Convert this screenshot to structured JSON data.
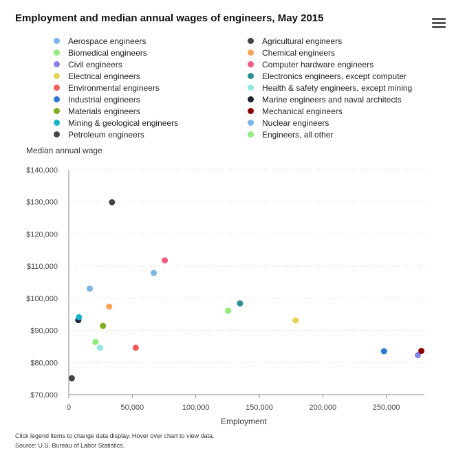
{
  "chart_data": {
    "type": "scatter",
    "title": "Employment and median annual wages of engineers, May 2015",
    "xlabel": "Employment",
    "ylabel": "Median annual wage",
    "xlim": [
      0,
      280000
    ],
    "ylim": [
      70000,
      140000
    ],
    "x_ticks": [
      0,
      50000,
      100000,
      150000,
      200000,
      250000
    ],
    "x_tick_labels": [
      "0",
      "50,000",
      "100,000",
      "150,000",
      "200,000",
      "250,000"
    ],
    "y_ticks": [
      70000,
      80000,
      90000,
      100000,
      110000,
      120000,
      130000,
      140000
    ],
    "y_tick_labels": [
      "$70,000",
      "$80,000",
      "$90,000",
      "$100,000",
      "$110,000",
      "$120,000",
      "$130,000",
      "$140,000"
    ],
    "series": [
      {
        "name": "Aerospace engineers",
        "color": "#7cb5ec",
        "x": 16500,
        "y": 103000
      },
      {
        "name": "Agricultural engineers",
        "color": "#434348",
        "x": 2400,
        "y": 75100
      },
      {
        "name": "Biomedical engineers",
        "color": "#90ed7d",
        "x": 21000,
        "y": 86400
      },
      {
        "name": "Chemical engineers",
        "color": "#f7a35c",
        "x": 31800,
        "y": 97400
      },
      {
        "name": "Civil engineers",
        "color": "#8085e9",
        "x": 274800,
        "y": 82300
      },
      {
        "name": "Computer hardware engineers",
        "color": "#f15c80",
        "x": 75600,
        "y": 111800
      },
      {
        "name": "Electrical engineers",
        "color": "#e4d354",
        "x": 178600,
        "y": 93100
      },
      {
        "name": "Electronics engineers, except computer",
        "color": "#2b908f",
        "x": 134800,
        "y": 98400
      },
      {
        "name": "Environmental engineers",
        "color": "#f45b5b",
        "x": 52700,
        "y": 84600
      },
      {
        "name": "Health & safety engineers, except mining",
        "color": "#91e8e1",
        "x": 24600,
        "y": 84600
      },
      {
        "name": "Industrial engineers",
        "color": "#2c78d4",
        "x": 248200,
        "y": 83500
      },
      {
        "name": "Marine engineers and naval architects",
        "color": "#1c2430",
        "x": 7500,
        "y": 93200
      },
      {
        "name": "Materials engineers",
        "color": "#7fab1e",
        "x": 26900,
        "y": 91400
      },
      {
        "name": "Mechanical engineers",
        "color": "#8b0000",
        "x": 277600,
        "y": 83600
      },
      {
        "name": "Mining & geological engineers",
        "color": "#17b1c9",
        "x": 8000,
        "y": 94100
      },
      {
        "name": "Nuclear engineers",
        "color": "#7cb5ec",
        "x": 66900,
        "y": 107900
      },
      {
        "name": "Petroleum engineers",
        "color": "#434348",
        "x": 34000,
        "y": 129900
      },
      {
        "name": "Engineers, all other",
        "color": "#90ed7d",
        "x": 125500,
        "y": 96100
      }
    ],
    "legend_position": "top"
  },
  "footer": {
    "note": "Click legend items to change data display. Hover over chart to view data.",
    "source": "Source: U.S. Bureau of Labor Statistics."
  }
}
